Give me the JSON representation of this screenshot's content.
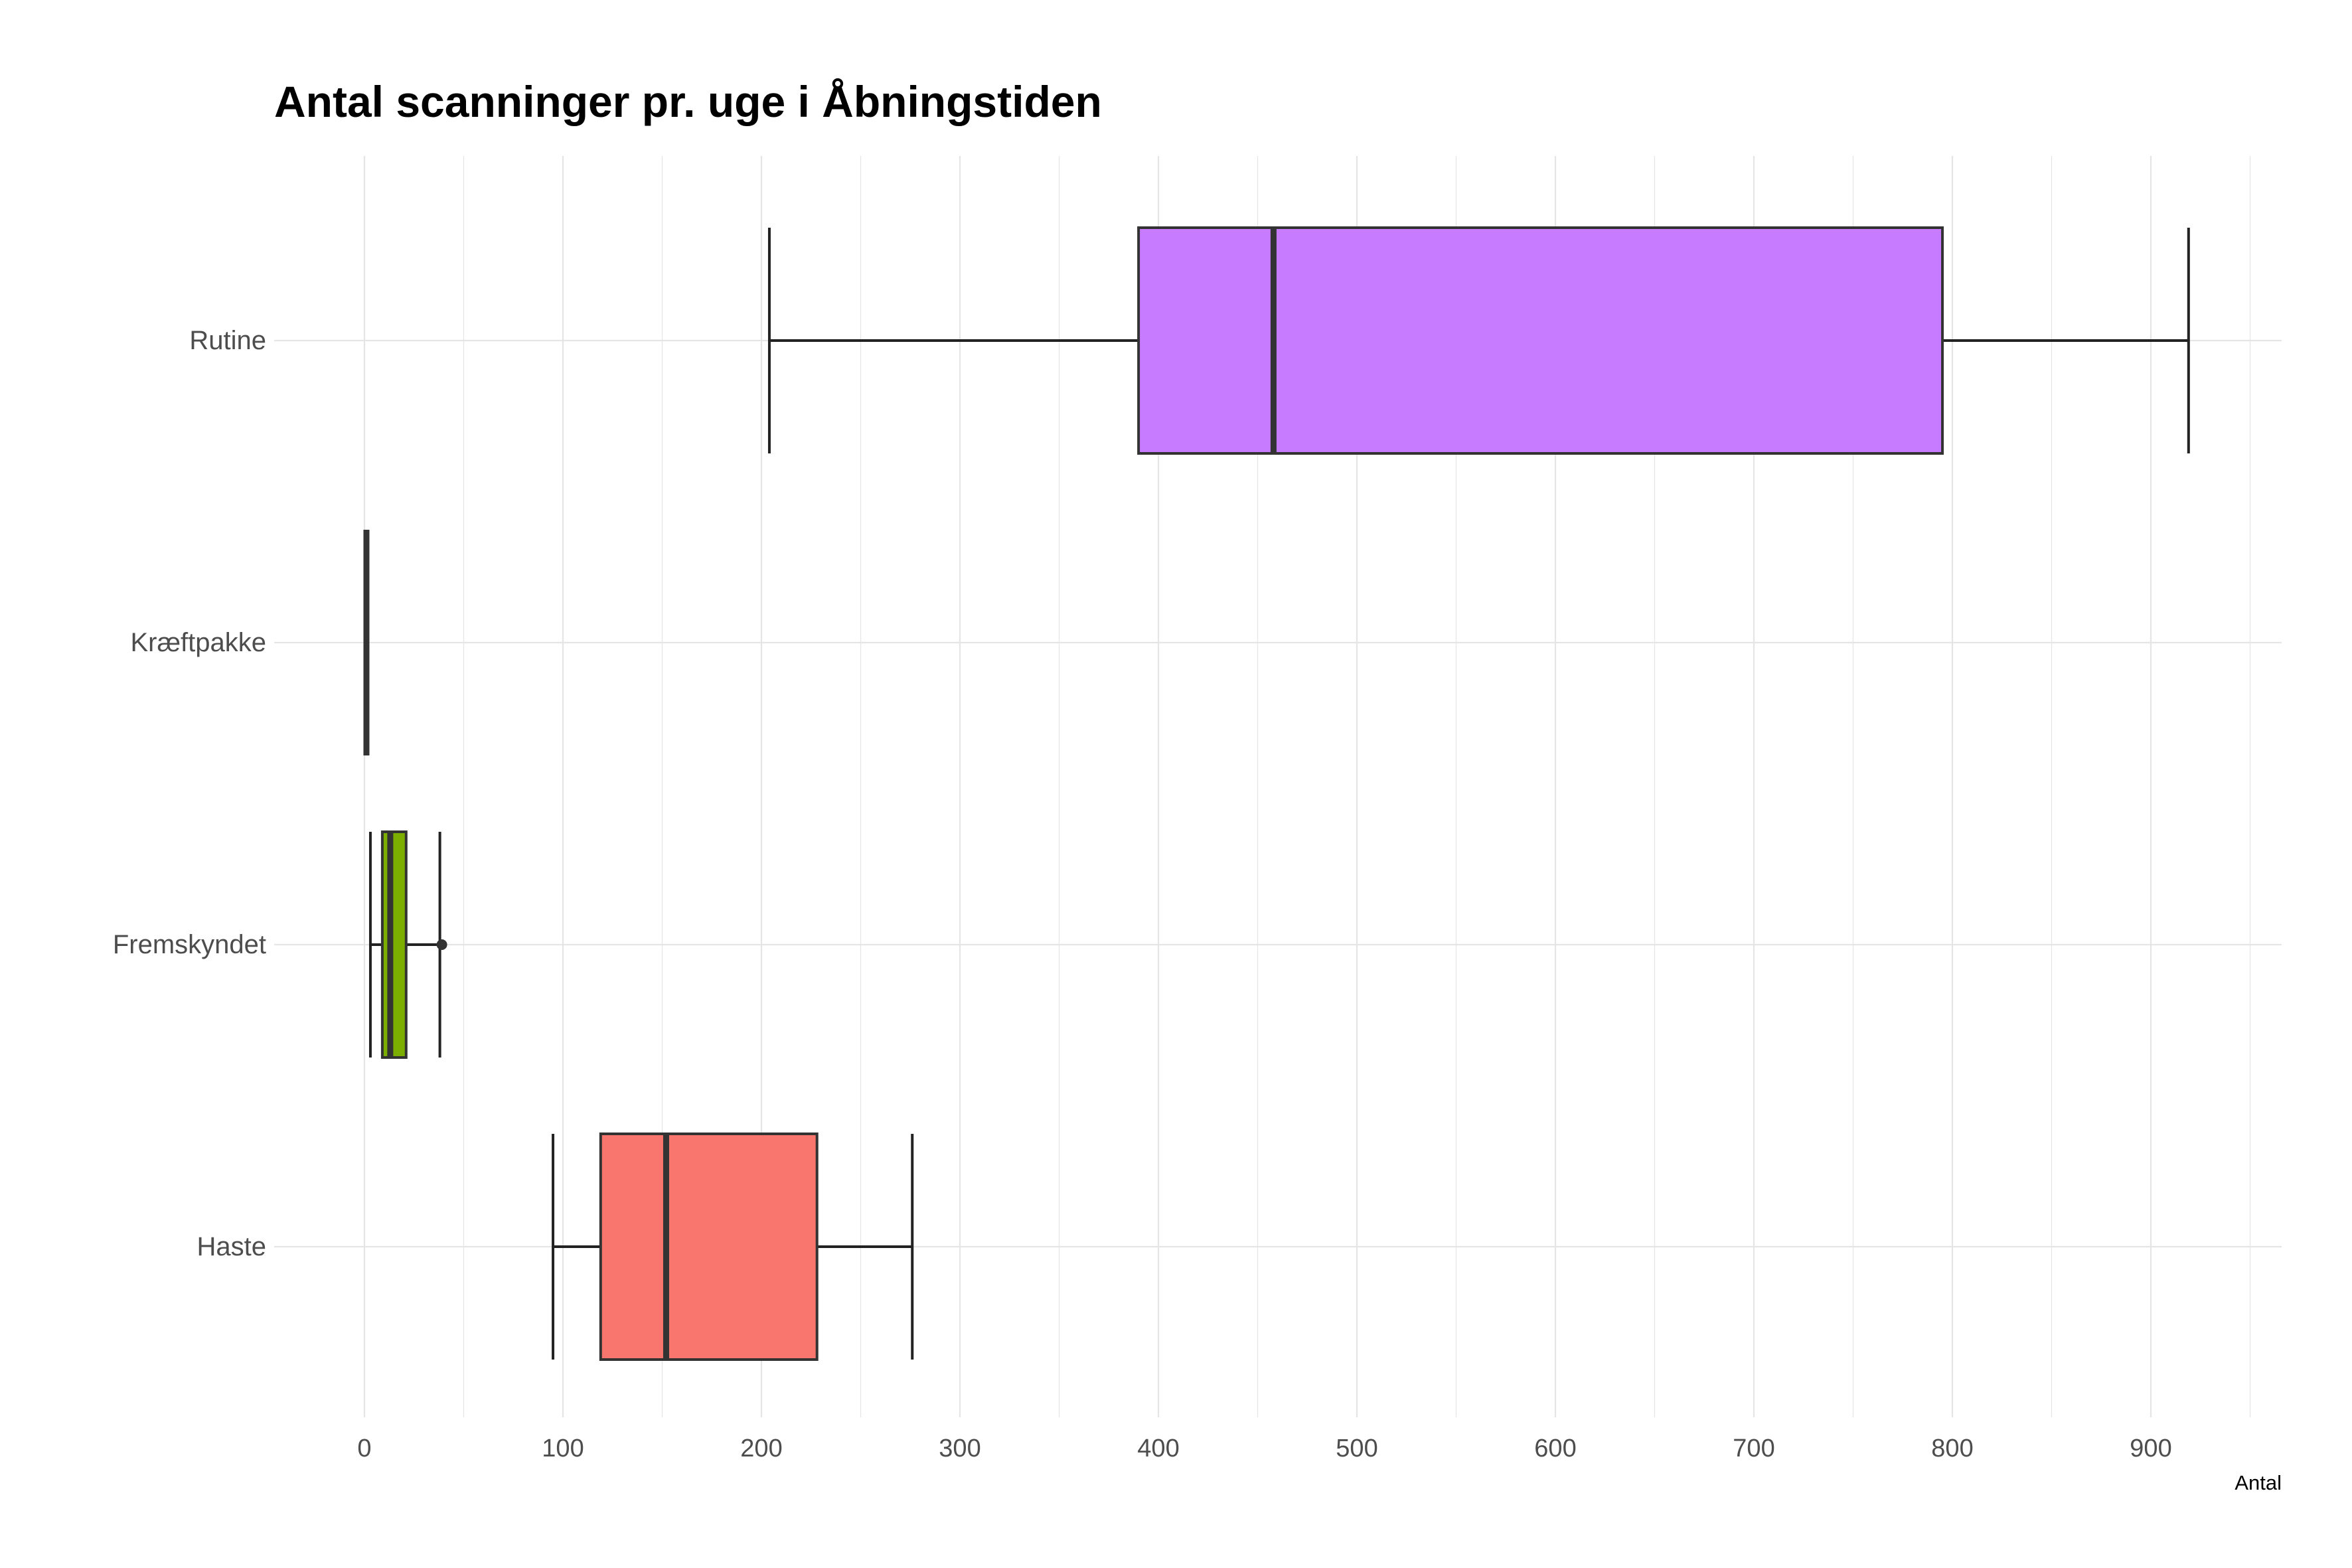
{
  "chart_data": {
    "type": "boxplot",
    "title": "Antal scanninger pr. uge i Åbningstiden",
    "xlabel": "Antal",
    "ylabel": "",
    "xlim": [
      -25,
      965
    ],
    "x_ticks": [
      0,
      100,
      200,
      300,
      400,
      500,
      600,
      700,
      800,
      900
    ],
    "x_tick_labels": [
      "0",
      "100",
      "200",
      "300",
      "400",
      "500",
      "600",
      "700",
      "800",
      "900"
    ],
    "grid": true,
    "legend": "none",
    "categories": [
      "Rutine",
      "Kræftpakke",
      "Fremskyndet",
      "Haste"
    ],
    "boxes": [
      {
        "category": "Rutine",
        "whisker_low": 204,
        "q1": 390,
        "median": 458,
        "q3": 795,
        "whisker_high": 919,
        "outliers": [],
        "color": "#C77CFF"
      },
      {
        "category": "Kræftpakke",
        "whisker_low": 1,
        "q1": 1,
        "median": 1,
        "q3": 1,
        "whisker_high": 1,
        "outliers": [],
        "color": "#00BFC4"
      },
      {
        "category": "Fremskyndet",
        "whisker_low": 3,
        "q1": 9,
        "median": 13,
        "q3": 21,
        "whisker_high": 38,
        "outliers": [
          39
        ],
        "color": "#7CAE00"
      },
      {
        "category": "Haste",
        "whisker_low": 95,
        "q1": 119,
        "median": 152,
        "q3": 228,
        "whisker_high": 276,
        "outliers": [],
        "color": "#F8766D"
      }
    ]
  }
}
